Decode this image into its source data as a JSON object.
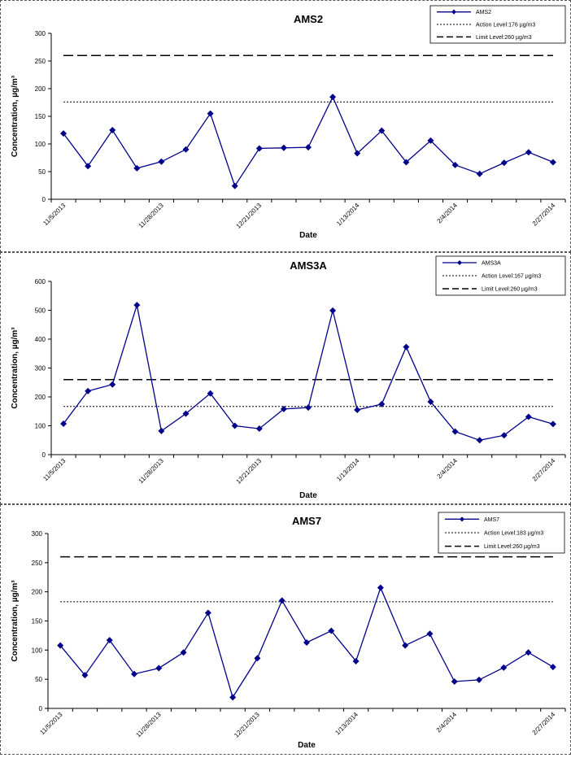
{
  "chart_data": [
    {
      "type": "line",
      "title": "AMS2",
      "xlabel": "Date",
      "ylabel": "Concentration, µg/m³",
      "ylim": [
        0,
        300
      ],
      "yticks": [
        0,
        50,
        100,
        150,
        200,
        250,
        300
      ],
      "xtick_labels": [
        "11/5/2013",
        "11/28/2013",
        "12/21/2013",
        "1/13/2014",
        "2/4/2014",
        "2/27/2014"
      ],
      "legend_position": "top-right",
      "series": [
        {
          "name": "AMS2",
          "color": "#00008B",
          "values": [
            119,
            60,
            125,
            56,
            68,
            90,
            155,
            24,
            92,
            93,
            94,
            185,
            83,
            124,
            67,
            106,
            62,
            46,
            66,
            85,
            67
          ]
        },
        {
          "name": "Action Level:176 µg/m3",
          "color": "#000000",
          "style": "dotted",
          "value": 176
        },
        {
          "name": "Limit Level:260 µg/m3",
          "color": "#000000",
          "style": "dashed",
          "value": 260
        }
      ]
    },
    {
      "type": "line",
      "title": "AMS3A",
      "xlabel": "Date",
      "ylabel": "Concentration, µg/m³",
      "ylim": [
        0,
        600
      ],
      "yticks": [
        0,
        100,
        200,
        300,
        400,
        500,
        600
      ],
      "xtick_labels": [
        "11/5/2013",
        "11/28/2013",
        "12/21/2013",
        "1/13/2014",
        "2/4/2014",
        "2/27/2014"
      ],
      "legend_position": "top-right",
      "series": [
        {
          "name": "AMS3A",
          "color": "#00008B",
          "values": [
            107,
            220,
            243,
            518,
            82,
            142,
            212,
            100,
            90,
            158,
            163,
            499,
            155,
            175,
            373,
            183,
            80,
            50,
            67,
            131,
            106
          ]
        },
        {
          "name": "Action Level:167 µg/m3",
          "color": "#000000",
          "style": "dotted",
          "value": 167
        },
        {
          "name": "Limit Level:260 µg/m3",
          "color": "#000000",
          "style": "dashed",
          "value": 260
        }
      ]
    },
    {
      "type": "line",
      "title": "AMS7",
      "xlabel": "Date",
      "ylabel": "Concentration, µg/m³",
      "ylim": [
        0,
        300
      ],
      "yticks": [
        0,
        50,
        100,
        150,
        200,
        250,
        300
      ],
      "xtick_labels": [
        "11/5/2013",
        "11/28/2013",
        "12/21/2013",
        "1/13/2014",
        "2/4/2014",
        "2/27/2014"
      ],
      "legend_position": "top-right",
      "series": [
        {
          "name": "AMS7",
          "color": "#00008B",
          "values": [
            108,
            57,
            117,
            59,
            69,
            96,
            164,
            19,
            86,
            185,
            113,
            133,
            81,
            207,
            108,
            128,
            46,
            49,
            70,
            96,
            71
          ]
        },
        {
          "name": "Action Level:183 µg/m3",
          "color": "#000000",
          "style": "dotted",
          "value": 183
        },
        {
          "name": "Limit Level:260 µg/m3",
          "color": "#000000",
          "style": "dashed",
          "value": 260
        }
      ]
    }
  ]
}
